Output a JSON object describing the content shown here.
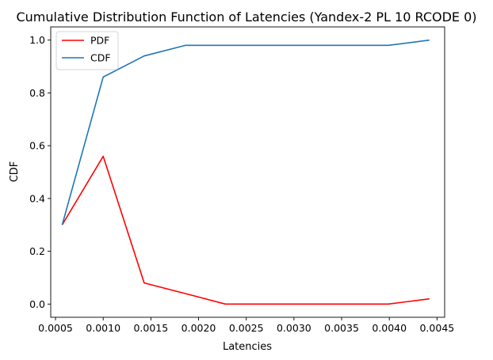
{
  "chart_data": {
    "type": "line",
    "title": "Cumulative Distribution Function of Latencies (Yandex-2 PL 10 RCODE 0)",
    "xlabel": "Latencies",
    "ylabel": "CDF",
    "xlim": [
      0.00045,
      0.00458
    ],
    "ylim": [
      -0.05,
      1.05
    ],
    "xticks": [
      0.0005,
      0.001,
      0.0015,
      0.002,
      0.0025,
      0.003,
      0.0035,
      0.004,
      0.0045
    ],
    "xtick_labels": [
      "0.0005",
      "0.0010",
      "0.0015",
      "0.0020",
      "0.0025",
      "0.0030",
      "0.0035",
      "0.0040",
      "0.0045"
    ],
    "yticks": [
      0.0,
      0.2,
      0.4,
      0.6,
      0.8,
      1.0
    ],
    "ytick_labels": [
      "0.0",
      "0.2",
      "0.4",
      "0.6",
      "0.8",
      "1.0"
    ],
    "grid": false,
    "legend_position": "top-left",
    "series": [
      {
        "name": "PDF",
        "color": "#ff0000",
        "x": [
          0.00057,
          0.001,
          0.00143,
          0.00186,
          0.00228,
          0.00271,
          0.00314,
          0.00357,
          0.00399,
          0.00442
        ],
        "y": [
          0.3,
          0.56,
          0.08,
          0.04,
          0.0,
          0.0,
          0.0,
          0.0,
          0.0,
          0.02
        ]
      },
      {
        "name": "CDF",
        "color": "#1f77b4",
        "x": [
          0.00057,
          0.001,
          0.00143,
          0.00186,
          0.00228,
          0.00271,
          0.00314,
          0.00357,
          0.00399,
          0.00442
        ],
        "y": [
          0.3,
          0.86,
          0.94,
          0.98,
          0.98,
          0.98,
          0.98,
          0.98,
          0.98,
          1.0
        ]
      }
    ]
  }
}
